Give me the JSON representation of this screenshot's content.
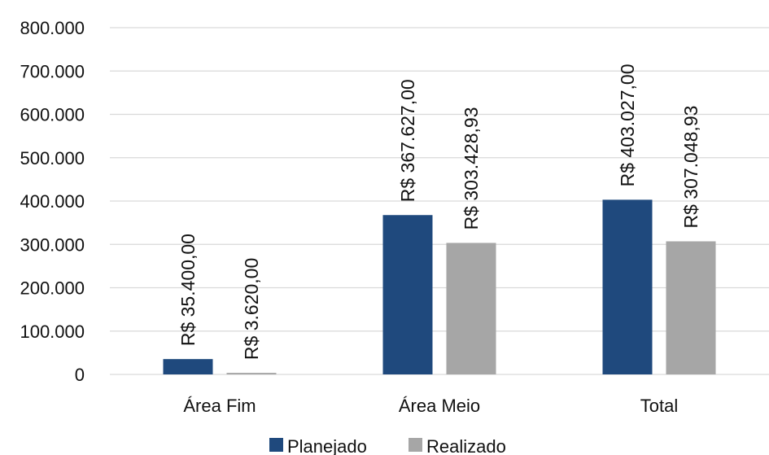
{
  "chart_data": {
    "type": "bar",
    "categories": [
      "Área Fim",
      "Área Meio",
      "Total"
    ],
    "series": [
      {
        "name": "Planejado",
        "color": "#1F497D",
        "values": [
          35400.0,
          367627.0,
          403027.0
        ],
        "labels": [
          "R$ 35.400,00",
          "R$ 367.627,00",
          "R$ 403.027,00"
        ]
      },
      {
        "name": "Realizado",
        "color": "#A6A6A6",
        "values": [
          3620.0,
          303428.93,
          307048.93
        ],
        "labels": [
          "R$ 3.620,00",
          "R$ 303.428,93",
          "R$ 307.048,93"
        ]
      }
    ],
    "yticks": [
      "0",
      "100.000",
      "200.000",
      "300.000",
      "400.000",
      "500.000",
      "600.000",
      "700.000",
      "800.000"
    ],
    "ylim": [
      0,
      800000
    ],
    "grid": true,
    "legend_position": "bottom",
    "gridline_color": "#D9D9D9"
  }
}
